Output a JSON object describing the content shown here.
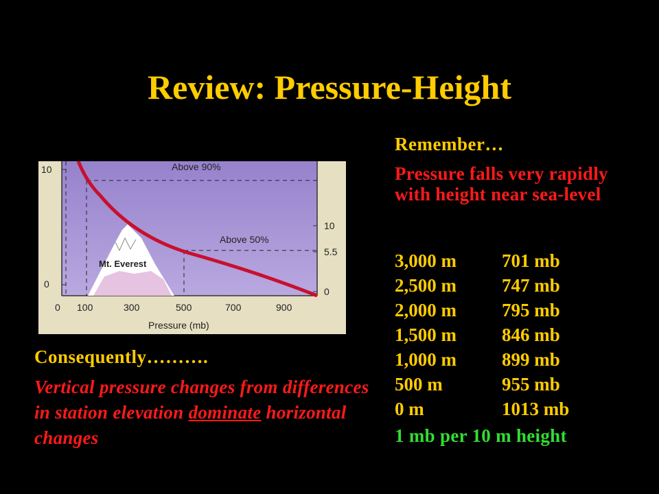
{
  "title": "Review: Pressure-Height",
  "remember": "Remember…",
  "key_point": "Pressure falls very rapidly with height near sea-level",
  "table": [
    {
      "height": "3,000 m",
      "pressure": "701 mb"
    },
    {
      "height": "2,500 m",
      "pressure": "747 mb"
    },
    {
      "height": "2,000 m",
      "pressure": "795 mb"
    },
    {
      "height": "1,500 m",
      "pressure": "846 mb"
    },
    {
      "height": "1,000 m",
      "pressure": "899 mb"
    },
    {
      "height": "500 m",
      "pressure": "955 mb"
    },
    {
      "height": "0 m",
      "pressure": "1013 mb"
    }
  ],
  "rule_of_thumb": "1 mb per 10 m height",
  "consequently": "Consequently……….",
  "explanation": {
    "part1": "Vertical pressure changes from differences in station elevation ",
    "underlined": "dominate",
    "part2": " horizontal changes"
  },
  "figure": {
    "xlabel": "Pressure (mb)",
    "x_ticks": [
      "0",
      "100",
      "300",
      "500",
      "700",
      "900"
    ],
    "left_ticks": [
      "10",
      "0"
    ],
    "right_ticks": [
      "10",
      "5.5",
      "0"
    ],
    "label_above90": "Above 90%",
    "label_above50": "Above 50%",
    "mountain_label": "Mt. Everest",
    "colors": {
      "panel": "#e8e0c0",
      "plot_bg": "#9b84cf",
      "curve": "#c8102e",
      "mountain": "#ffffff"
    }
  }
}
